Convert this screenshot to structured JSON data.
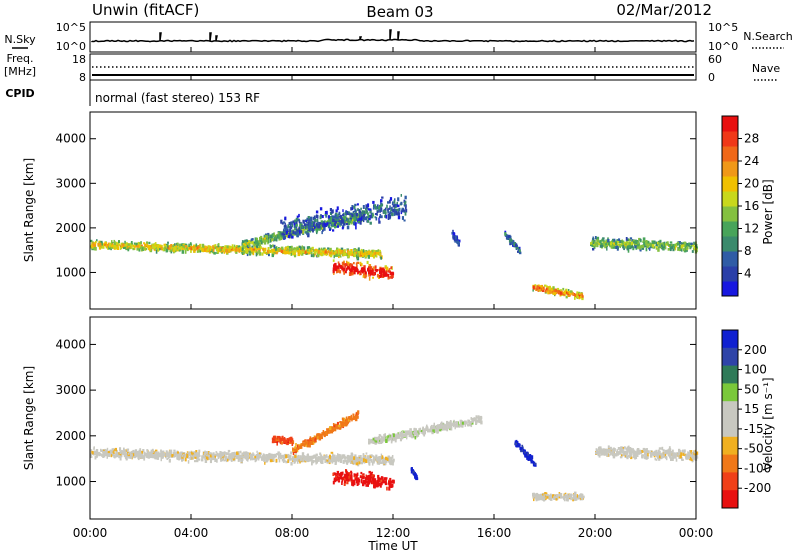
{
  "header": {
    "station": "Unwin (fitACF)",
    "beam": "Beam 03",
    "date": "02/Mar/2012"
  },
  "top_panels": {
    "nsky": {
      "left_label": "N.Sky",
      "right_label": "N.Search",
      "left_ticks": [
        "10^5",
        "10^0"
      ],
      "right_ticks": [
        "10^5",
        "10^0"
      ]
    },
    "freq": {
      "left_label_line1": "Freq.",
      "left_label_line2": "[MHz]",
      "right_label": "Nave",
      "left_ticks": [
        "18",
        "8"
      ],
      "right_ticks": [
        "60",
        "0"
      ]
    },
    "cpid": {
      "label": "CPID",
      "text": "normal (fast stereo) 153 RF"
    }
  },
  "colors": {
    "power": [
      "#1818e0",
      "#2a3fa8",
      "#2f5ca6",
      "#3a8a6c",
      "#48a45a",
      "#84c040",
      "#c8d81c",
      "#f0c000",
      "#f09818",
      "#f06818",
      "#f03818",
      "#e81010"
    ],
    "velocity": [
      "#1020d0",
      "#2f44a8",
      "#2f7a58",
      "#7ac83a",
      "#c8c8c0",
      "#c8c8c0",
      "#f0b020",
      "#f07818",
      "#f04018",
      "#e81010"
    ]
  },
  "chart_data": [
    {
      "type": "heatmap",
      "title": "",
      "xlabel": "Time UT",
      "ylabel": "Slant Range [km]",
      "x_ticks": [
        "00:00",
        "04:00",
        "08:00",
        "12:00",
        "16:00",
        "20:00",
        "00:00"
      ],
      "x_range_hours": [
        0,
        24
      ],
      "y_ticks": [
        "1000",
        "2000",
        "3000",
        "4000"
      ],
      "y_range_km": [
        180,
        4600
      ],
      "colorbar": {
        "label": "Power [dB]",
        "range": [
          0,
          32
        ],
        "ticks": [
          "4",
          "8",
          "12",
          "16",
          "20",
          "24",
          "28"
        ]
      },
      "regions": [
        {
          "name": "main-band",
          "t0": 0.0,
          "t1": 11.5,
          "r_start": 1650,
          "r_end": 1450,
          "width": 260,
          "level": 0.55
        },
        {
          "name": "upper-arc",
          "t0": 6.0,
          "t1": 10.8,
          "r_start": 1650,
          "r_end": 2300,
          "width": 260,
          "level": 0.4
        },
        {
          "name": "strong-echo",
          "t0": 9.6,
          "t1": 12.0,
          "r_start": 1150,
          "r_end": 1000,
          "width": 420,
          "level": 0.95
        },
        {
          "name": "plume",
          "t0": 7.5,
          "t1": 12.5,
          "r_start": 2000,
          "r_end": 2500,
          "width": 700,
          "level": 0.2
        },
        {
          "name": "arc-1420",
          "t0": 14.3,
          "t1": 14.6,
          "r_start": 1900,
          "r_end": 1700,
          "width": 180,
          "level": 0.15
        },
        {
          "name": "arc-1630",
          "t0": 16.4,
          "t1": 17.0,
          "r_start": 1900,
          "r_end": 1500,
          "width": 180,
          "level": 0.2
        },
        {
          "name": "ground-1830",
          "t0": 17.5,
          "t1": 19.5,
          "r_start": 700,
          "r_end": 500,
          "width": 200,
          "level": 0.7
        },
        {
          "name": "right-band",
          "t0": 19.8,
          "t1": 24.0,
          "r_start": 1700,
          "r_end": 1600,
          "width": 330,
          "level": 0.4
        }
      ]
    },
    {
      "type": "heatmap",
      "title": "",
      "xlabel": "Time UT",
      "ylabel": "Slant Range [km]",
      "x_ticks": [
        "00:00",
        "04:00",
        "08:00",
        "12:00",
        "16:00",
        "20:00",
        "00:00"
      ],
      "x_range_hours": [
        0,
        24
      ],
      "y_ticks": [
        "1000",
        "2000",
        "3000",
        "4000"
      ],
      "y_range_km": [
        180,
        4600
      ],
      "colorbar": {
        "label": "Velocity [m s⁻¹]",
        "range": [
          -250,
          250
        ],
        "ticks": [
          "200",
          "100",
          "50",
          "15",
          "-15",
          "-50",
          "-100",
          "-200"
        ]
      },
      "regions": [
        {
          "name": "gray-band",
          "t0": 0.0,
          "t1": 12.0,
          "r_start": 1650,
          "r_end": 1500,
          "width": 280,
          "class": 5
        },
        {
          "name": "gray-arc",
          "t0": 11.0,
          "t1": 15.5,
          "r_start": 1900,
          "r_end": 2400,
          "width": 240,
          "class": 4
        },
        {
          "name": "red-echo",
          "t0": 9.6,
          "t1": 12.0,
          "r_start": 1150,
          "r_end": 1000,
          "width": 420,
          "class": 9
        },
        {
          "name": "orange-arc",
          "t0": 8.0,
          "t1": 10.6,
          "r_start": 1700,
          "r_end": 2500,
          "width": 240,
          "class": 7
        },
        {
          "name": "red-patch",
          "t0": 7.2,
          "t1": 8.0,
          "r_start": 1950,
          "r_end": 1900,
          "width": 200,
          "class": 8
        },
        {
          "name": "blue-1230",
          "t0": 12.7,
          "t1": 12.9,
          "r_start": 1300,
          "r_end": 1100,
          "width": 140,
          "class": 0
        },
        {
          "name": "blue-1700",
          "t0": 16.8,
          "t1": 17.6,
          "r_start": 1900,
          "r_end": 1400,
          "width": 200,
          "class": 0
        },
        {
          "name": "gray-1900",
          "t0": 17.5,
          "t1": 19.5,
          "r_start": 700,
          "r_end": 700,
          "width": 200,
          "class": 5
        },
        {
          "name": "gray-right",
          "t0": 20.0,
          "t1": 24.0,
          "r_start": 1700,
          "r_end": 1600,
          "width": 330,
          "class": 5
        }
      ]
    }
  ]
}
